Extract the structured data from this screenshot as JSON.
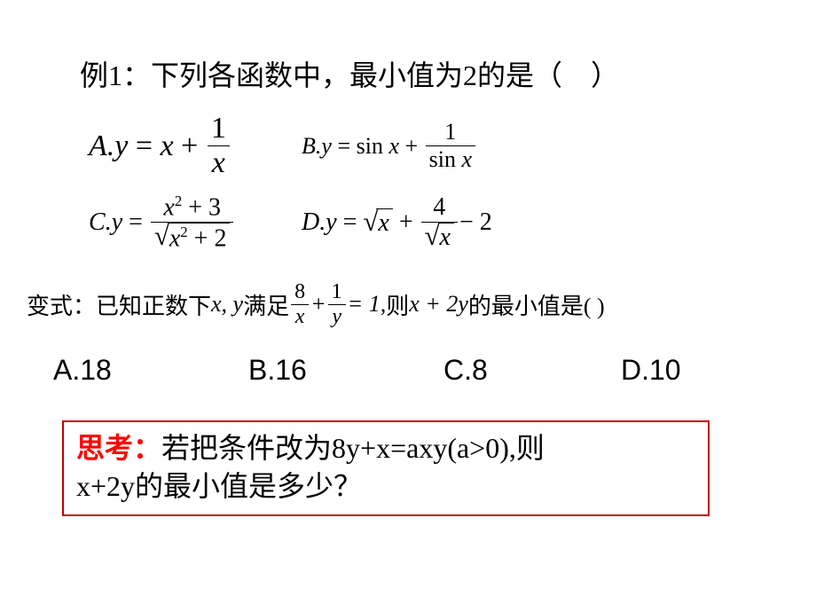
{
  "title": "例1：下列各函数中，最小值为2的是（　）",
  "optA": {
    "label": "A",
    "lhs": "y",
    "rhs_text": "x",
    "frac_num": "1",
    "frac_den": "x"
  },
  "optB": {
    "label": "B",
    "lhs": "y",
    "rhs_text": "sin x",
    "frac_num": "1",
    "frac_den": "sin x"
  },
  "optC": {
    "label": "C",
    "lhs": "y",
    "num": "x² + 3",
    "den_inside": "x² + 2"
  },
  "optD": {
    "label": "D",
    "lhs": "y",
    "sqrt1": "x",
    "frac_num": "4",
    "frac_den_sqrt": "x",
    "tail": " − 2"
  },
  "variant": {
    "prefix": "变式：已知正数下",
    "xy": "x, y",
    "mid1": "满足",
    "f1num": "8",
    "f1den": "x",
    "plus": " + ",
    "f2num": "1",
    "f2den": "y",
    "eq": " = 1, ",
    "mid2": "则",
    "expr": "x + 2y",
    "suffix": "的最小值是( )"
  },
  "choices": {
    "a": "A.18",
    "b": "B.16",
    "c": "C.8",
    "d": "D.10"
  },
  "think": {
    "label": "思考：",
    "text1": "若把条件改为8y+x=axy(a>0),则",
    "text2": "x+2y的最小值是多少？"
  },
  "colors": {
    "background": "#ffffff",
    "text": "#000000",
    "accent": "#ff0000",
    "box_border": "#c00000"
  }
}
